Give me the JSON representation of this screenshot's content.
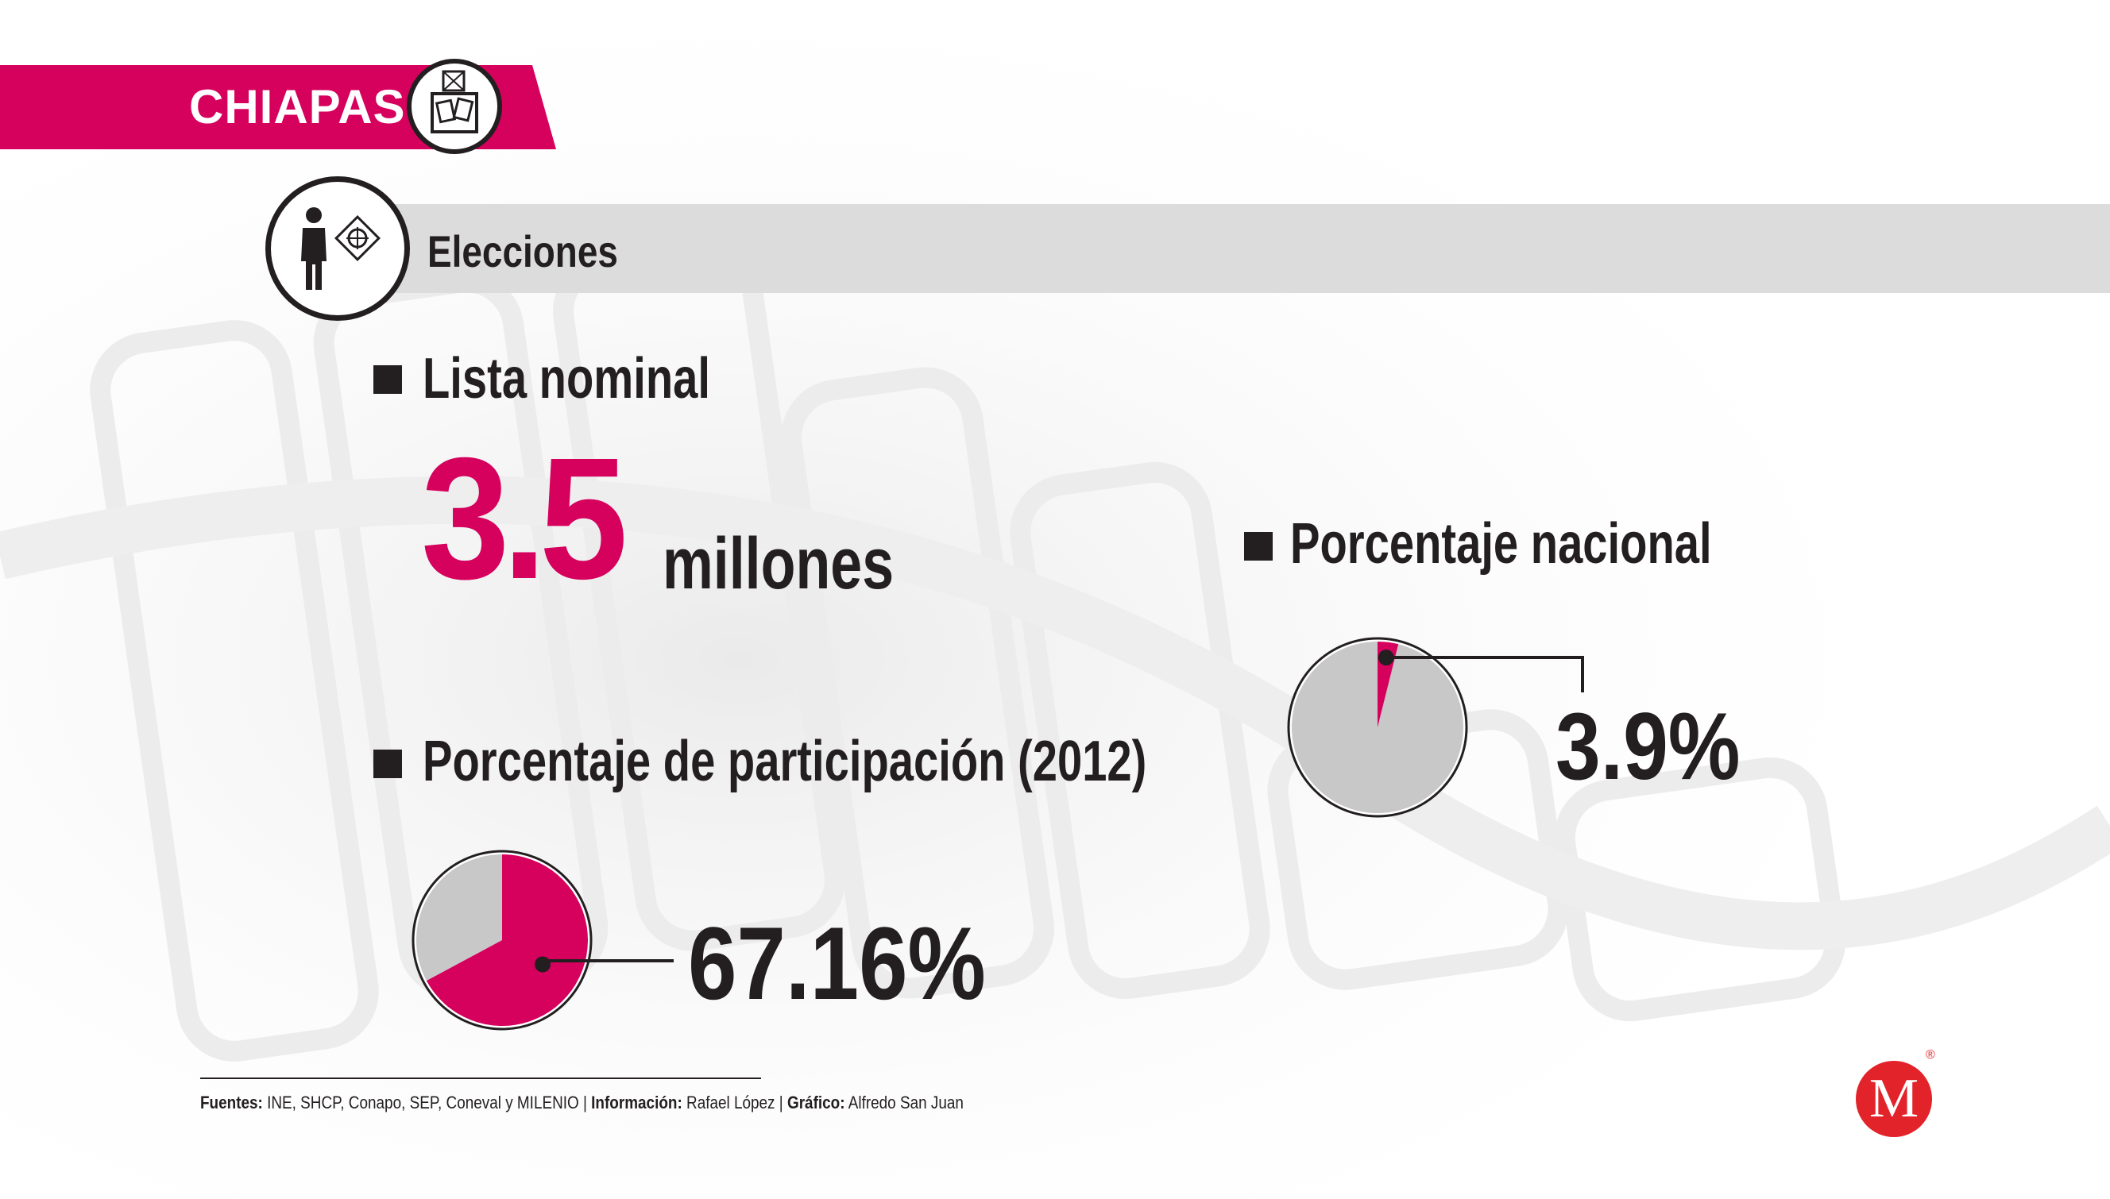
{
  "banner": {
    "title": "CHIAPAS"
  },
  "section": {
    "title": "Elecciones"
  },
  "lista_nominal": {
    "heading": "Lista nominal",
    "value": "3.5",
    "unit": "millones"
  },
  "participacion": {
    "heading": "Porcentaje de participación (2012)",
    "value_label": "67.16%"
  },
  "nacional": {
    "heading": "Porcentaje nacional",
    "value_label": "3.9%"
  },
  "colors": {
    "accent": "#d6005d",
    "pie_rest": "#c8c8c8",
    "text": "#231f20",
    "section_bar": "#dcdcdc",
    "logo": "#e2232a"
  },
  "icons": {
    "banner": "ballot-box-icon",
    "section": "voter-ballot-icon",
    "logo": "milenio-logo"
  },
  "footer": {
    "fuentes_label": "Fuentes:",
    "fuentes_value": "INE, SHCP, Conapo, SEP, Coneval y MILENIO",
    "informacion_label": "Información:",
    "informacion_value": "Rafael López",
    "grafico_label": "Gráfico:",
    "grafico_value": "Alfredo San Juan",
    "separator": "|"
  },
  "logo": {
    "letter": "M",
    "mark": "®"
  },
  "chart_data": [
    {
      "type": "pie",
      "title": "Porcentaje de participación (2012)",
      "categories": [
        "",
        ""
      ],
      "values": [
        67.16,
        32.84
      ],
      "highlight_index": 0
    },
    {
      "type": "pie",
      "title": "Porcentaje nacional",
      "categories": [
        "",
        ""
      ],
      "values": [
        3.9,
        96.1
      ],
      "highlight_index": 0
    }
  ]
}
